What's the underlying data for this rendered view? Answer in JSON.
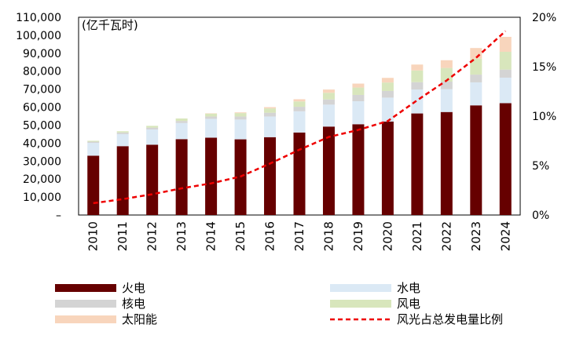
{
  "chart_data": {
    "type": "bar",
    "stacked": true,
    "unit_label": "(亿千瓦时)",
    "categories": [
      "2010",
      "2011",
      "2012",
      "2013",
      "2014",
      "2015",
      "2016",
      "2017",
      "2018",
      "2019",
      "2020",
      "2021",
      "2022",
      "2023",
      "2024"
    ],
    "y_left": {
      "ylim": [
        0,
        110000
      ],
      "ticks": [
        0,
        10000,
        20000,
        30000,
        40000,
        50000,
        60000,
        70000,
        80000,
        90000,
        100000,
        110000
      ],
      "tick_labels": [
        "–",
        "10,000",
        "20,000",
        "30,000",
        "40,000",
        "50,000",
        "60,000",
        "70,000",
        "80,000",
        "90,000",
        "100,000",
        "110,000"
      ]
    },
    "y_right": {
      "ylim": [
        0,
        0.2
      ],
      "ticks": [
        0,
        0.05,
        0.1,
        0.15,
        0.2
      ],
      "tick_labels": [
        "0%",
        "5%",
        "10%",
        "15%",
        "20%"
      ]
    },
    "series": [
      {
        "name": "火电",
        "color": "#660000",
        "values": [
          33000,
          38300,
          39100,
          42200,
          43000,
          42100,
          43300,
          45900,
          49200,
          50500,
          52000,
          56500,
          57300,
          61000,
          62200
        ]
      },
      {
        "name": "水电",
        "color": "#dbe9f5",
        "values": [
          7100,
          6700,
          8500,
          9000,
          10500,
          11000,
          11500,
          11800,
          12200,
          12800,
          13300,
          13300,
          12700,
          12800,
          14200
        ]
      },
      {
        "name": "核电",
        "color": "#d4d4d4",
        "values": [
          700,
          900,
          1000,
          1100,
          1300,
          1700,
          2100,
          2500,
          2900,
          3500,
          3700,
          4100,
          4200,
          4300,
          4500
        ]
      },
      {
        "name": "风电",
        "color": "#d8e6bc",
        "values": [
          500,
          700,
          1000,
          1400,
          1600,
          1900,
          2400,
          3000,
          3700,
          4100,
          4700,
          6500,
          7600,
          8900,
          9900
        ]
      },
      {
        "name": "太阳能",
        "color": "#f8d5bc",
        "values": [
          0,
          0,
          0,
          0,
          200,
          400,
          700,
          1200,
          1800,
          2200,
          2600,
          3300,
          4300,
          5900,
          8300
        ]
      }
    ],
    "line": {
      "name": "风光占总发电量比例",
      "color": "#ee0000",
      "axis": "right",
      "values": [
        0.012,
        0.016,
        0.021,
        0.027,
        0.032,
        0.039,
        0.052,
        0.066,
        0.079,
        0.086,
        0.095,
        0.116,
        0.136,
        0.159,
        0.186
      ]
    },
    "legend": {
      "placement": "bottom",
      "items": [
        {
          "label": "火电",
          "kind": "bar",
          "color": "#660000"
        },
        {
          "label": "水电",
          "kind": "bar",
          "color": "#dbe9f5"
        },
        {
          "label": "核电",
          "kind": "bar",
          "color": "#d4d4d4"
        },
        {
          "label": "风电",
          "kind": "bar",
          "color": "#d8e6bc"
        },
        {
          "label": "太阳能",
          "kind": "bar",
          "color": "#f8d5bc"
        },
        {
          "label": "风光占总发电量比例",
          "kind": "dashed-line",
          "color": "#ee0000"
        }
      ]
    },
    "grid": false
  }
}
